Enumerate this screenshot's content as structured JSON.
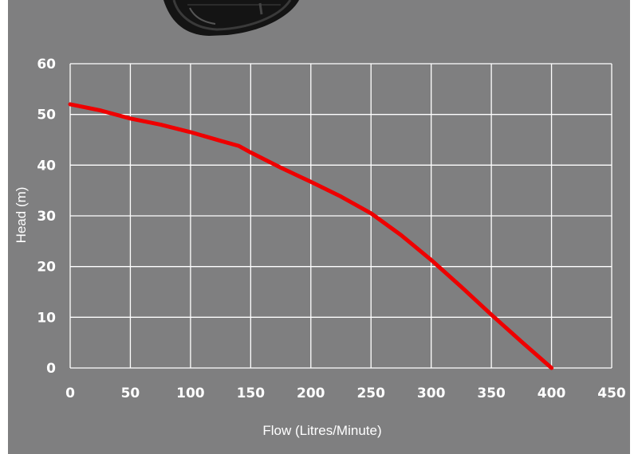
{
  "chart_data": {
    "type": "line",
    "title": "",
    "xlabel": "Flow (Litres/Minute)",
    "ylabel": "Head (m)",
    "xlim": [
      0,
      450
    ],
    "ylim": [
      0,
      60
    ],
    "x_ticks": [
      "0",
      "50",
      "100",
      "150",
      "200",
      "250",
      "300",
      "350",
      "400",
      "450"
    ],
    "y_ticks": [
      "0",
      "10",
      "20",
      "30",
      "40",
      "50",
      "60"
    ],
    "grid": true,
    "series": [
      {
        "x": [
          0,
          25,
          50,
          75,
          100,
          125,
          140,
          150,
          175,
          200,
          225,
          250,
          275,
          300,
          325,
          350,
          375,
          400
        ],
        "y": [
          52,
          50.8,
          49.2,
          48,
          46.5,
          44.8,
          43.8,
          42.5,
          39.5,
          36.7,
          33.8,
          30.5,
          26.2,
          21.3,
          16,
          10.5,
          5.2,
          0
        ],
        "color": "#ee0000"
      }
    ]
  },
  "colors": {
    "background": "#7f7f80",
    "grid": "#ffffff",
    "line": "#ee0000",
    "pump_image": "#111111"
  },
  "image": {
    "icon": "pump-icon"
  }
}
